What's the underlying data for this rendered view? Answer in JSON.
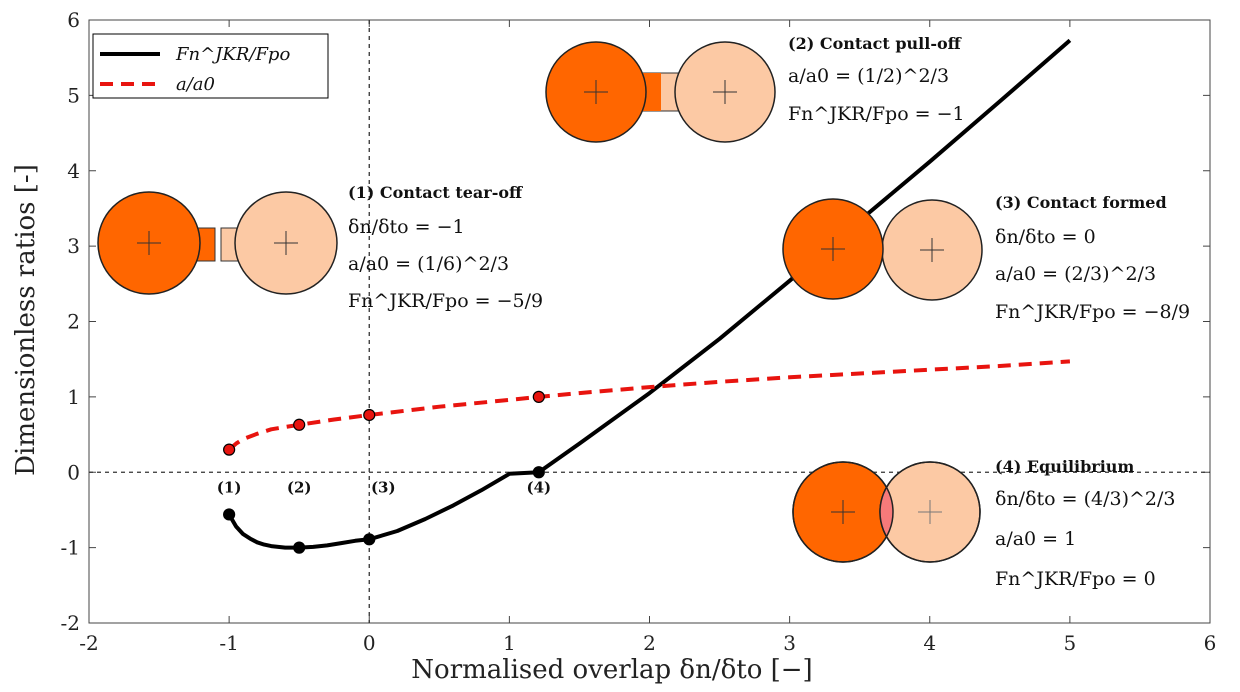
{
  "chart_data": {
    "type": "line",
    "title": "",
    "xlabel": "Normalised overlap δn/δto [−]",
    "ylabel": "Dimensionless ratios [-]",
    "xlim": [
      -2,
      6
    ],
    "ylim": [
      -2,
      6
    ],
    "xticks": [
      -2,
      -1,
      0,
      1,
      2,
      3,
      4,
      5,
      6
    ],
    "yticks": [
      -2,
      -1,
      0,
      1,
      2,
      3,
      4,
      5,
      6
    ],
    "xtick_labels": [
      "-2",
      "-1",
      "0",
      "1",
      "2",
      "3",
      "4",
      "5",
      "6"
    ],
    "ytick_labels": [
      "-2",
      "-1",
      "0",
      "1",
      "2",
      "3",
      "4",
      "5",
      "6"
    ],
    "series": [
      {
        "name": "Fn^JKR/Fpo",
        "style": "solid",
        "color": "#000000",
        "x": [
          -1.0,
          -0.95,
          -0.9,
          -0.85,
          -0.8,
          -0.75,
          -0.7,
          -0.6,
          -0.5,
          -0.4,
          -0.3,
          -0.2,
          -0.1,
          0.0,
          0.2,
          0.4,
          0.6,
          0.8,
          1.0,
          1.21,
          1.5,
          2.0,
          2.5,
          3.0,
          3.5,
          4.0,
          4.5,
          5.0
        ],
        "values": [
          -0.56,
          -0.72,
          -0.82,
          -0.88,
          -0.93,
          -0.96,
          -0.98,
          -1.0,
          -1.0,
          -0.99,
          -0.97,
          -0.94,
          -0.91,
          -0.89,
          -0.78,
          -0.62,
          -0.44,
          -0.24,
          -0.02,
          0.0,
          0.38,
          1.05,
          1.77,
          2.54,
          3.34,
          4.12,
          4.92,
          5.73
        ]
      },
      {
        "name": "a/a0",
        "style": "dashed",
        "color": "#e8140f",
        "x": [
          -1.0,
          -0.95,
          -0.9,
          -0.8,
          -0.7,
          -0.6,
          -0.5,
          -0.25,
          0.0,
          0.5,
          1.0,
          1.21,
          1.5,
          2.0,
          2.5,
          3.0,
          3.5,
          4.0,
          4.5,
          5.0
        ],
        "values": [
          0.3,
          0.38,
          0.44,
          0.51,
          0.57,
          0.6,
          0.63,
          0.7,
          0.76,
          0.87,
          0.96,
          1.0,
          1.05,
          1.13,
          1.2,
          1.26,
          1.31,
          1.36,
          1.41,
          1.47
        ]
      }
    ],
    "markers": [
      {
        "series": "Fn^JKR/Fpo",
        "x": -1.0,
        "y": -0.56
      },
      {
        "series": "Fn^JKR/Fpo",
        "x": -0.5,
        "y": -1.0
      },
      {
        "series": "Fn^JKR/Fpo",
        "x": 0.0,
        "y": -0.89
      },
      {
        "series": "Fn^JKR/Fpo",
        "x": 1.21,
        "y": 0.0
      },
      {
        "series": "a/a0",
        "x": -1.0,
        "y": 0.3
      },
      {
        "series": "a/a0",
        "x": -0.5,
        "y": 0.63
      },
      {
        "series": "a/a0",
        "x": 0.0,
        "y": 0.76
      },
      {
        "series": "a/a0",
        "x": 1.21,
        "y": 1.0
      }
    ],
    "reference_lines": [
      {
        "orientation": "horizontal",
        "value": 0
      },
      {
        "orientation": "vertical",
        "value": 0
      }
    ],
    "point_labels": [
      {
        "text": "(1)",
        "x": -1.0
      },
      {
        "text": "(2)",
        "x": -0.5
      },
      {
        "text": "(3)",
        "x": 0.1
      },
      {
        "text": "(4)",
        "x": 1.21
      }
    ],
    "legend": {
      "position": "top-left",
      "entries": [
        {
          "label": "Fn^JKR/Fpo",
          "style": "solid",
          "color": "#000000"
        },
        {
          "label": "a/a0",
          "style": "dashed",
          "color": "#e8140f"
        }
      ]
    },
    "annotations": [
      {
        "id": "tear-off",
        "title": "(1) Contact tear-off",
        "lines": [
          "δn/δto = −1",
          "a/a0 = (1/6)^2/3",
          "Fn^JKR/Fpo = −5/9"
        ]
      },
      {
        "id": "pull-off",
        "title": "(2) Contact pull-off",
        "lines": [
          "a/a0 = (1/2)^2/3",
          "Fn^JKR/Fpo = −1"
        ]
      },
      {
        "id": "formed",
        "title": "(3) Contact formed",
        "lines": [
          "δn/δto = 0",
          "a/a0 = (2/3)^2/3",
          "Fn^JKR/Fpo = −8/9"
        ]
      },
      {
        "id": "equilibrium",
        "title": "(4) Equilibrium",
        "lines": [
          "δn/δto = (4/3)^2/3",
          "a/a0 = 1",
          "Fn^JKR/Fpo = 0"
        ]
      }
    ],
    "colors": {
      "particle_dark": "#ff6600",
      "particle_light": "#fcc9a4",
      "overlap": "#f77a7a",
      "jkr_line": "#000000",
      "contact_line": "#e8140f"
    }
  }
}
